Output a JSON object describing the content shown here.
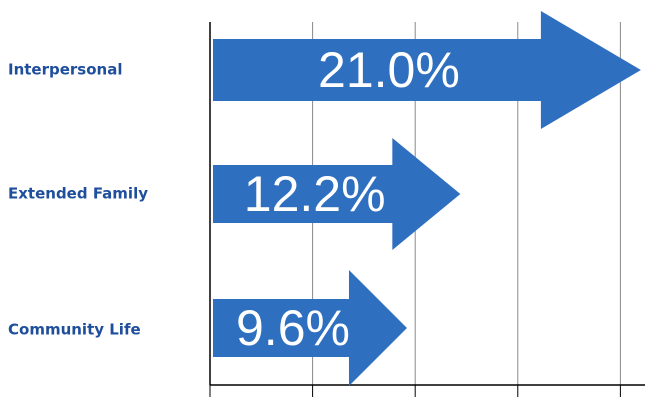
{
  "chart_data": {
    "type": "bar",
    "orientation": "horizontal",
    "categories": [
      "Interpersonal",
      "Extended Family",
      "Community Life"
    ],
    "values": [
      21.0,
      12.2,
      9.6
    ],
    "value_labels": [
      "21.0%",
      "12.2%",
      "9.6%"
    ],
    "color": "#2f6fbf",
    "xlim": [
      0,
      21.2
    ],
    "xticks": [
      0,
      5,
      10,
      15,
      20
    ],
    "grid": true
  }
}
